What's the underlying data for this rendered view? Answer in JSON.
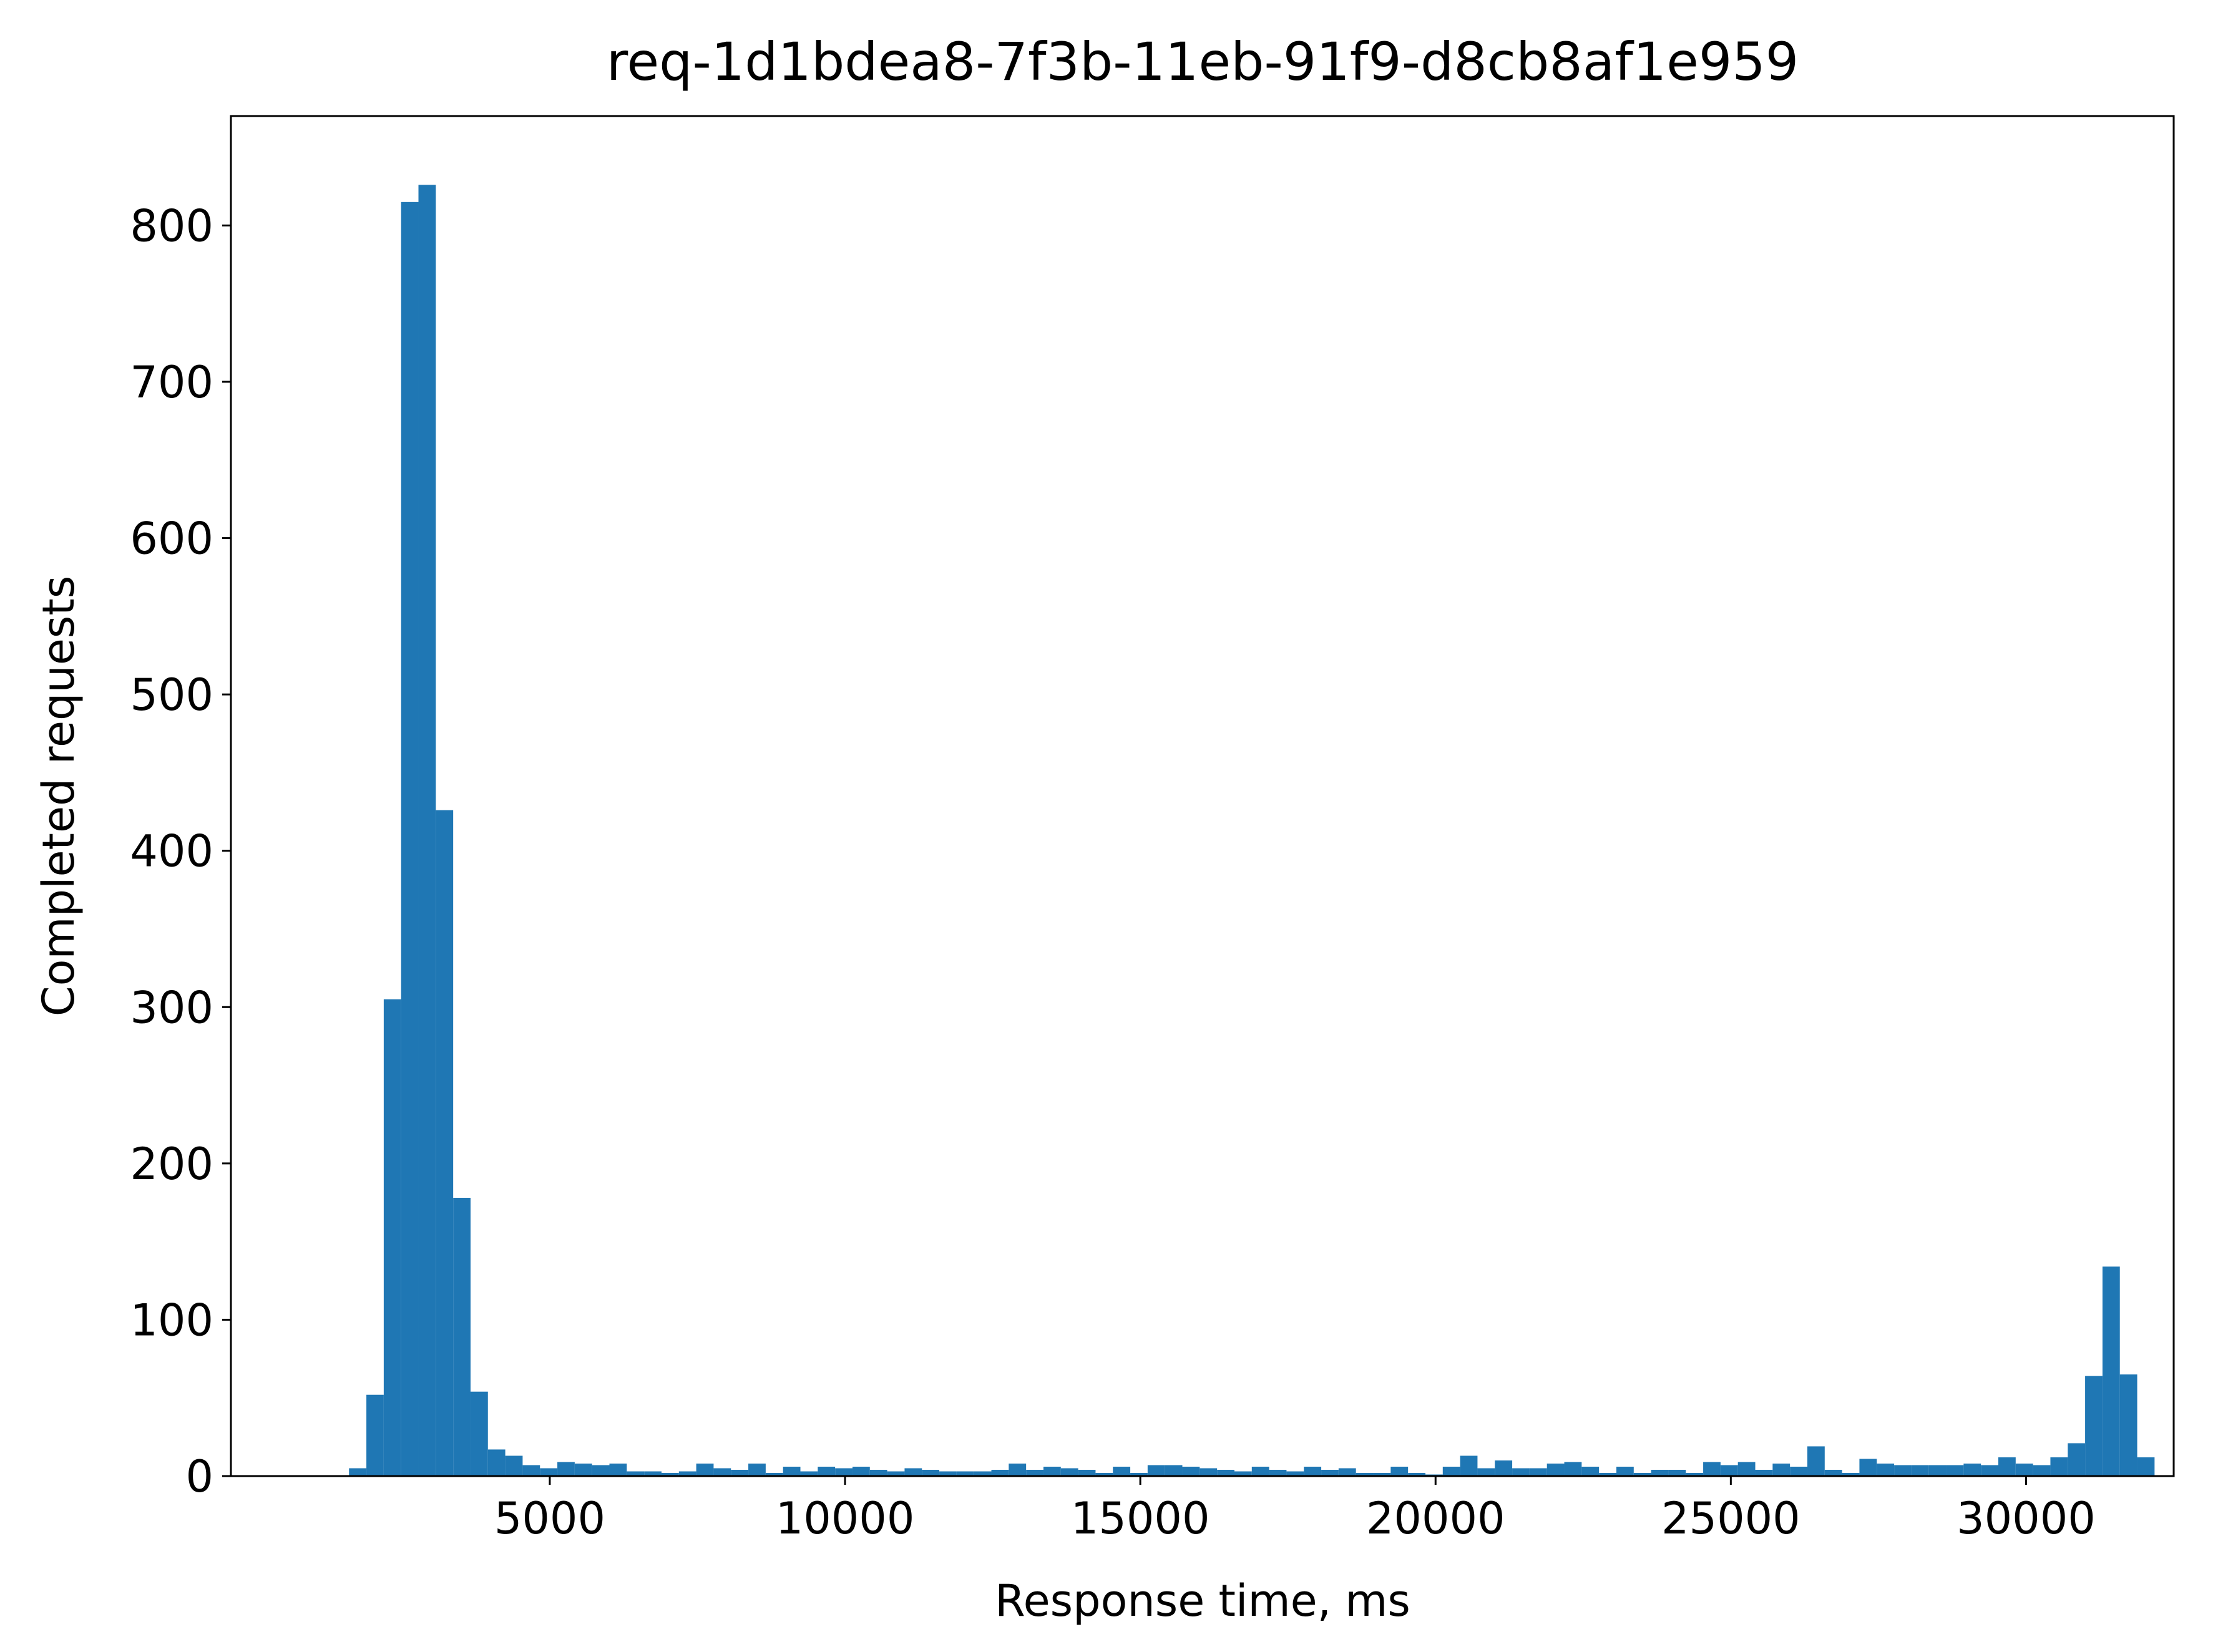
{
  "chart_data": {
    "type": "bar",
    "title": "req-1d1bdea8-7f3b-11eb-91f9-d8cb8af1e959",
    "xlabel": "Response time, ms",
    "ylabel": "Completed requests",
    "xlim": [
      -400,
      32500
    ],
    "ylim": [
      0,
      870
    ],
    "xticks": [
      5000,
      10000,
      15000,
      20000,
      25000,
      30000
    ],
    "yticks": [
      0,
      100,
      200,
      300,
      400,
      500,
      600,
      700,
      800
    ],
    "bin_start": 1600,
    "bin_width": 294,
    "grid": false,
    "bar_color": "#1f77b4",
    "values": [
      5,
      52,
      305,
      815,
      826,
      426,
      178,
      54,
      17,
      13,
      7,
      5,
      9,
      8,
      7,
      8,
      3,
      3,
      2,
      3,
      8,
      5,
      4,
      8,
      2,
      6,
      3,
      6,
      5,
      6,
      4,
      3,
      5,
      4,
      3,
      3,
      3,
      4,
      8,
      4,
      6,
      5,
      4,
      2,
      6,
      2,
      7,
      7,
      6,
      5,
      4,
      3,
      6,
      4,
      3,
      6,
      4,
      5,
      2,
      2,
      6,
      2,
      1,
      6,
      13,
      5,
      10,
      5,
      5,
      8,
      9,
      6,
      2,
      6,
      2,
      4,
      4,
      2,
      9,
      7,
      9,
      4,
      8,
      6,
      19,
      4,
      2,
      11,
      8,
      7,
      7,
      7,
      7,
      8,
      7,
      12,
      8,
      7,
      12,
      21,
      64,
      134,
      65,
      12
    ]
  }
}
